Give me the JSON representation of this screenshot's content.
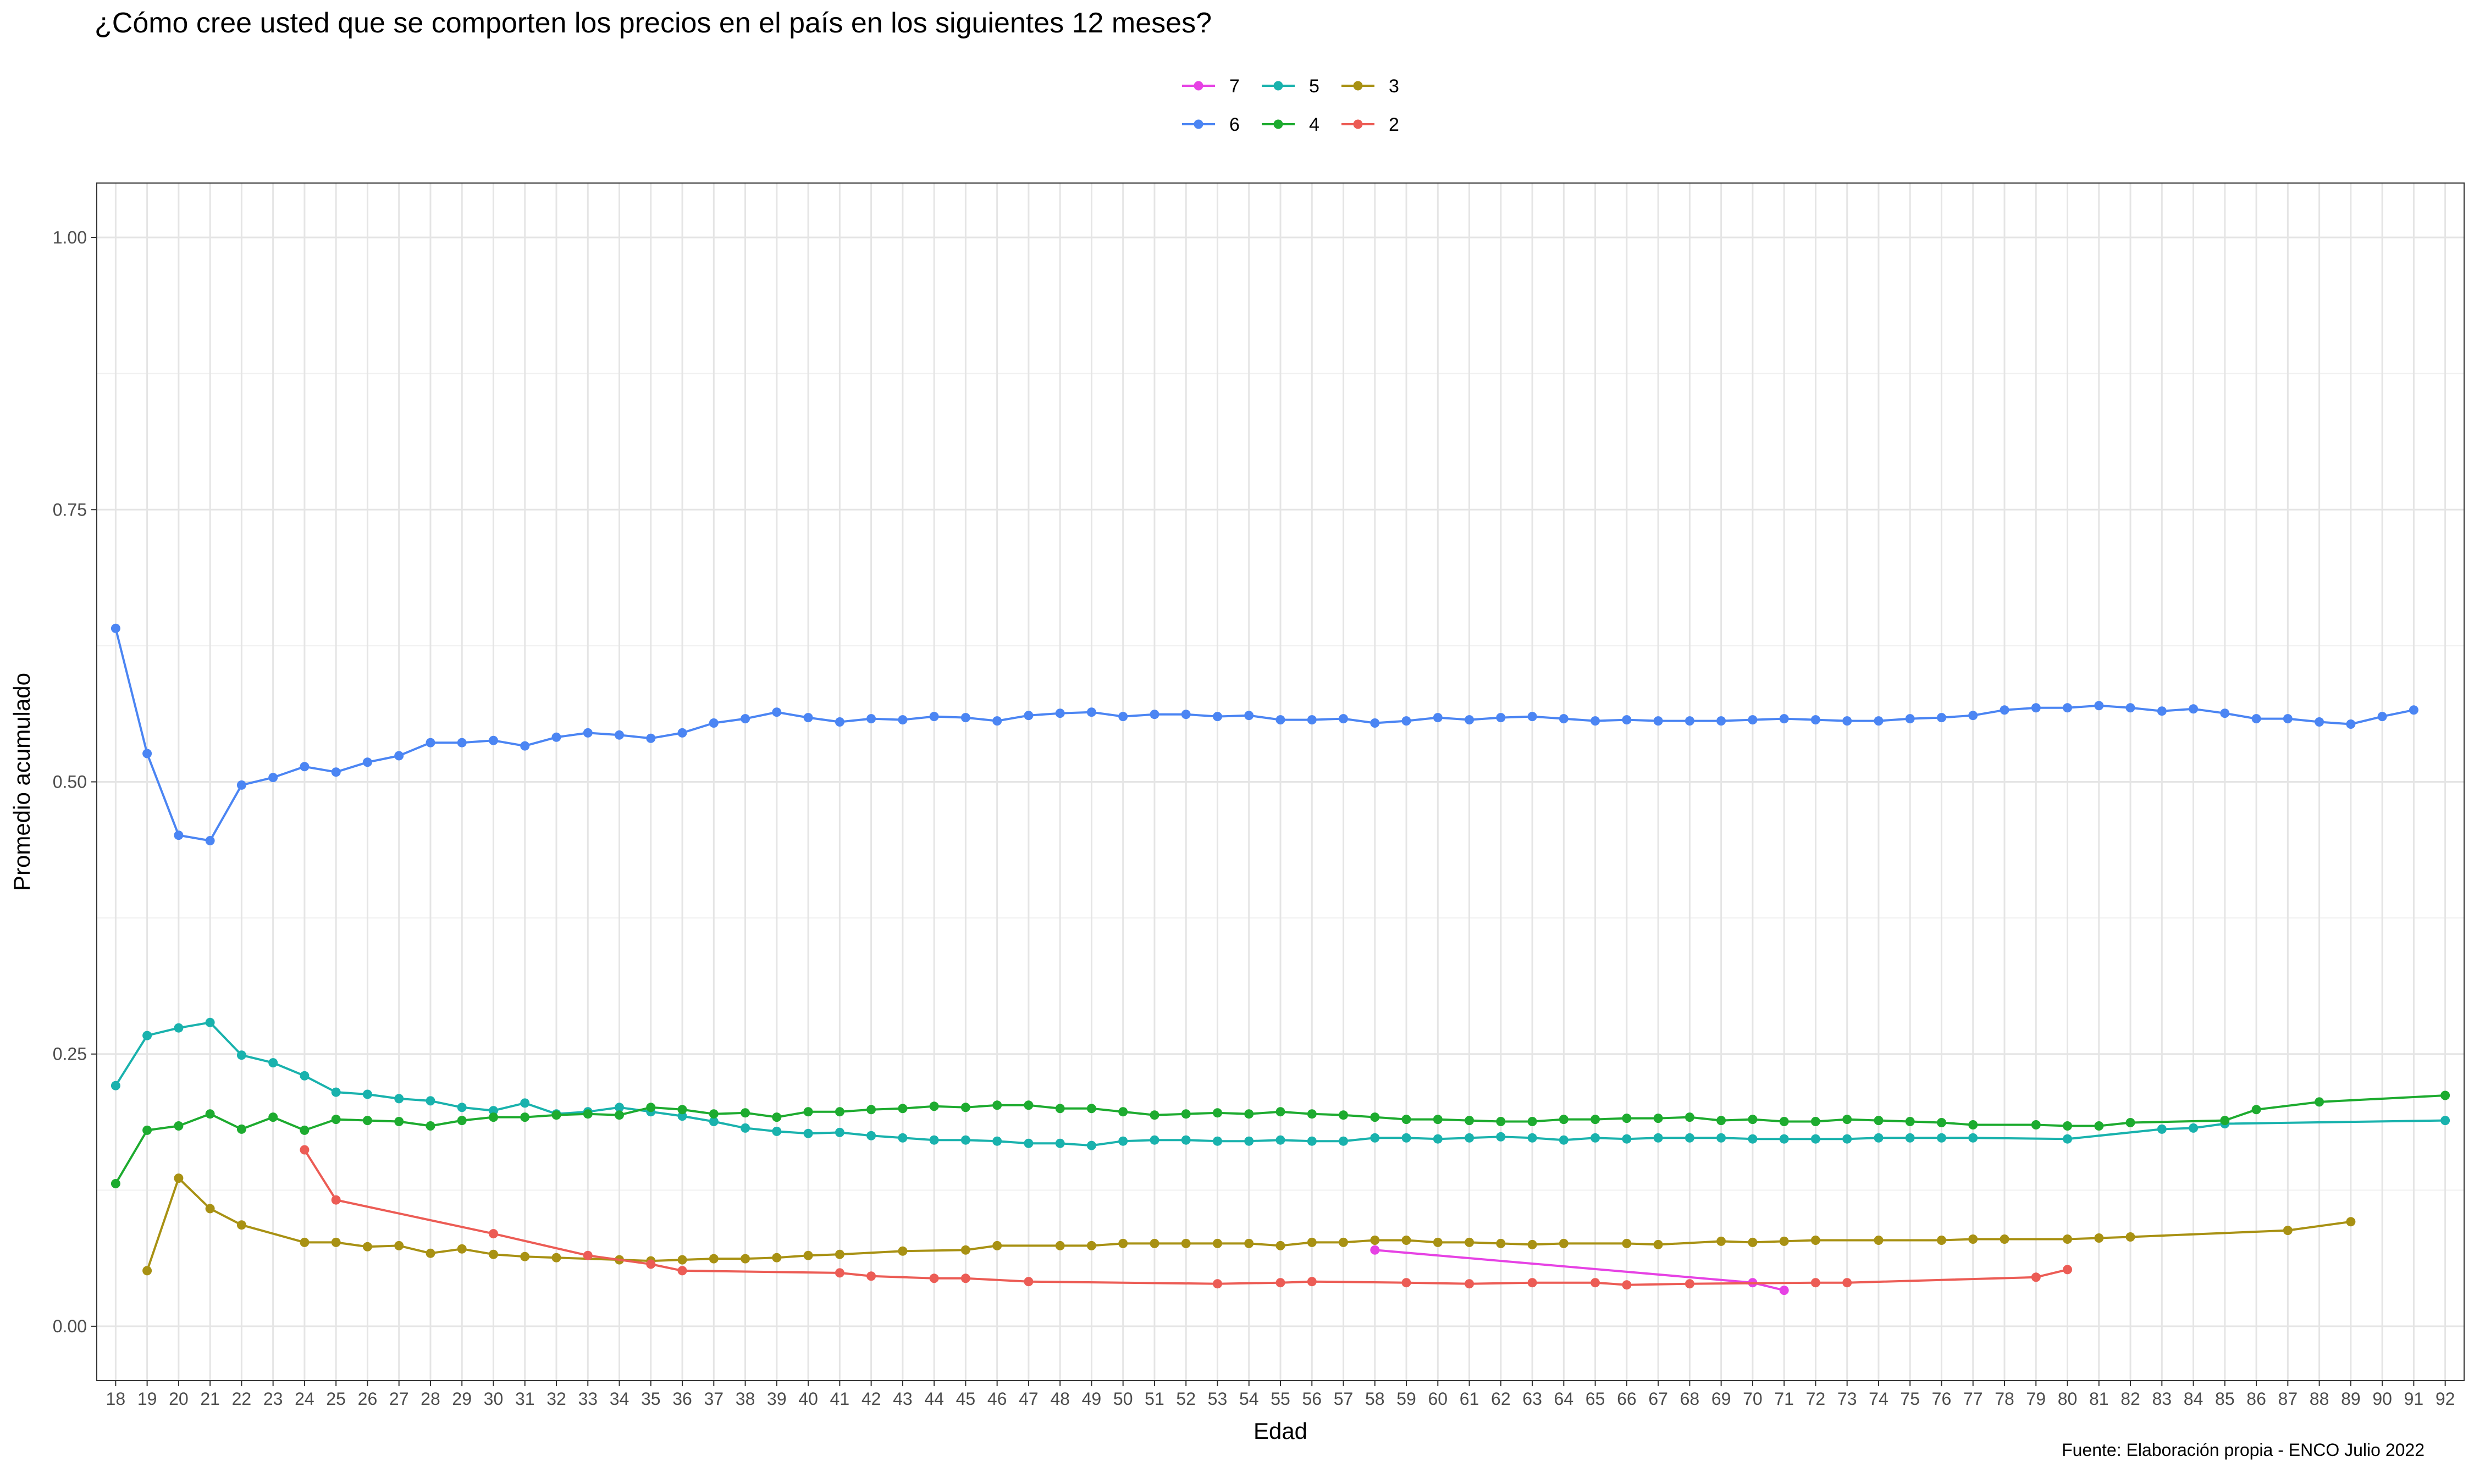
{
  "chart_data": {
    "type": "line",
    "title": "¿Cómo cree usted que se comporten los precios en el país en los siguientes 12 meses?",
    "xlabel": "Edad",
    "ylabel": "Promedio acumulado",
    "caption": "Fuente: Elaboración propia - ENCO Julio 2022",
    "xlim": [
      18,
      92
    ],
    "ylim": [
      0,
      1
    ],
    "y_ticks": [
      "0.00",
      "0.25",
      "0.50",
      "0.75",
      "1.00"
    ],
    "x_ticks": [
      "18",
      "19",
      "20",
      "21",
      "22",
      "23",
      "24",
      "25",
      "26",
      "27",
      "28",
      "29",
      "30",
      "31",
      "32",
      "33",
      "34",
      "35",
      "36",
      "37",
      "38",
      "39",
      "40",
      "41",
      "42",
      "43",
      "44",
      "45",
      "46",
      "47",
      "48",
      "49",
      "50",
      "51",
      "52",
      "53",
      "54",
      "55",
      "56",
      "57",
      "58",
      "59",
      "60",
      "61",
      "62",
      "63",
      "64",
      "65",
      "66",
      "67",
      "68",
      "69",
      "70",
      "71",
      "72",
      "73",
      "74",
      "75",
      "76",
      "77",
      "78",
      "79",
      "80",
      "81",
      "82",
      "83",
      "84",
      "85",
      "86",
      "87",
      "88",
      "89",
      "90",
      "91",
      "92"
    ],
    "grid": true,
    "legend_position": "top",
    "series": [
      {
        "name": "7",
        "color": "#e642e4",
        "x": [
          58,
          70,
          71
        ],
        "y": [
          0.07,
          0.04,
          0.033
        ]
      },
      {
        "name": "6",
        "color": "#4b85f3",
        "x": [
          18,
          19,
          20,
          21,
          22,
          23,
          24,
          25,
          26,
          27,
          28,
          29,
          30,
          31,
          32,
          33,
          34,
          35,
          36,
          37,
          38,
          39,
          40,
          41,
          42,
          43,
          44,
          45,
          46,
          47,
          48,
          49,
          50,
          51,
          52,
          53,
          54,
          55,
          56,
          57,
          58,
          59,
          60,
          61,
          62,
          63,
          64,
          65,
          66,
          67,
          68,
          69,
          70,
          71,
          72,
          73,
          74,
          75,
          76,
          77,
          78,
          79,
          80,
          81,
          82,
          83,
          84,
          85,
          86,
          87,
          88,
          89,
          90,
          91
        ],
        "y": [
          0.641,
          0.526,
          0.451,
          0.446,
          0.497,
          0.504,
          0.514,
          0.509,
          0.518,
          0.524,
          0.536,
          0.536,
          0.538,
          0.533,
          0.541,
          0.545,
          0.543,
          0.54,
          0.545,
          0.554,
          0.558,
          0.564,
          0.559,
          0.555,
          0.558,
          0.557,
          0.56,
          0.559,
          0.556,
          0.561,
          0.563,
          0.564,
          0.56,
          0.562,
          0.562,
          0.56,
          0.561,
          0.557,
          0.557,
          0.558,
          0.554,
          0.556,
          0.559,
          0.557,
          0.559,
          0.56,
          0.558,
          0.556,
          0.557,
          0.556,
          0.556,
          0.556,
          0.557,
          0.558,
          0.557,
          0.556,
          0.556,
          0.558,
          0.559,
          0.561,
          0.566,
          0.568,
          0.568,
          0.57,
          0.568,
          0.565,
          0.567,
          0.563,
          0.558,
          0.558,
          0.555,
          0.553,
          0.56,
          0.566
        ]
      },
      {
        "name": "5",
        "color": "#19b2ad",
        "x": [
          18,
          19,
          20,
          21,
          22,
          23,
          24,
          25,
          26,
          27,
          28,
          29,
          30,
          31,
          32,
          33,
          34,
          35,
          36,
          37,
          38,
          39,
          40,
          41,
          42,
          43,
          44,
          45,
          46,
          47,
          48,
          49,
          50,
          51,
          52,
          53,
          54,
          55,
          56,
          57,
          58,
          59,
          60,
          61,
          62,
          63,
          64,
          65,
          66,
          67,
          68,
          69,
          70,
          71,
          72,
          73,
          74,
          75,
          76,
          77,
          80,
          83,
          84,
          85,
          92
        ],
        "y": [
          0.221,
          0.267,
          0.274,
          0.279,
          0.249,
          0.242,
          0.23,
          0.215,
          0.213,
          0.209,
          0.207,
          0.201,
          0.198,
          0.205,
          0.195,
          0.197,
          0.201,
          0.197,
          0.193,
          0.188,
          0.182,
          0.179,
          0.177,
          0.178,
          0.175,
          0.173,
          0.171,
          0.171,
          0.17,
          0.168,
          0.168,
          0.166,
          0.17,
          0.171,
          0.171,
          0.17,
          0.17,
          0.171,
          0.17,
          0.17,
          0.173,
          0.173,
          0.172,
          0.173,
          0.174,
          0.173,
          0.171,
          0.173,
          0.172,
          0.173,
          0.173,
          0.173,
          0.172,
          0.172,
          0.172,
          0.172,
          0.173,
          0.173,
          0.173,
          0.173,
          0.172,
          0.181,
          0.182,
          0.186,
          0.189
        ]
      },
      {
        "name": "4",
        "color": "#1dab2f",
        "x": [
          18,
          19,
          20,
          21,
          22,
          23,
          24,
          25,
          26,
          27,
          28,
          29,
          30,
          31,
          32,
          33,
          34,
          35,
          36,
          37,
          38,
          39,
          40,
          41,
          42,
          43,
          44,
          45,
          46,
          47,
          48,
          49,
          50,
          51,
          52,
          53,
          54,
          55,
          56,
          57,
          58,
          59,
          60,
          61,
          62,
          63,
          64,
          65,
          66,
          67,
          68,
          69,
          70,
          71,
          72,
          73,
          74,
          75,
          76,
          77,
          79,
          80,
          81,
          82,
          85,
          86,
          88,
          92
        ],
        "y": [
          0.131,
          0.18,
          0.184,
          0.195,
          0.181,
          0.192,
          0.18,
          0.19,
          0.189,
          0.188,
          0.184,
          0.189,
          0.192,
          0.192,
          0.194,
          0.195,
          0.194,
          0.201,
          0.199,
          0.195,
          0.196,
          0.192,
          0.197,
          0.197,
          0.199,
          0.2,
          0.202,
          0.201,
          0.203,
          0.203,
          0.2,
          0.2,
          0.197,
          0.194,
          0.195,
          0.196,
          0.195,
          0.197,
          0.195,
          0.194,
          0.192,
          0.19,
          0.19,
          0.189,
          0.188,
          0.188,
          0.19,
          0.19,
          0.191,
          0.191,
          0.192,
          0.189,
          0.19,
          0.188,
          0.188,
          0.19,
          0.189,
          0.188,
          0.187,
          0.185,
          0.185,
          0.184,
          0.184,
          0.187,
          0.189,
          0.199,
          0.206,
          0.212
        ]
      },
      {
        "name": "3",
        "color": "#a89113",
        "x": [
          19,
          20,
          21,
          22,
          24,
          25,
          26,
          27,
          28,
          29,
          30,
          31,
          32,
          34,
          35,
          36,
          37,
          38,
          39,
          40,
          41,
          43,
          45,
          46,
          48,
          49,
          50,
          51,
          52,
          53,
          54,
          55,
          56,
          57,
          58,
          59,
          60,
          61,
          62,
          63,
          64,
          66,
          67,
          69,
          70,
          71,
          72,
          74,
          76,
          77,
          78,
          80,
          81,
          82,
          87,
          89
        ],
        "y": [
          0.051,
          0.136,
          0.108,
          0.093,
          0.077,
          0.077,
          0.073,
          0.074,
          0.067,
          0.071,
          0.066,
          0.064,
          0.063,
          0.061,
          0.06,
          0.061,
          0.062,
          0.062,
          0.063,
          0.065,
          0.066,
          0.069,
          0.07,
          0.074,
          0.074,
          0.074,
          0.076,
          0.076,
          0.076,
          0.076,
          0.076,
          0.074,
          0.077,
          0.077,
          0.079,
          0.079,
          0.077,
          0.077,
          0.076,
          0.075,
          0.076,
          0.076,
          0.075,
          0.078,
          0.077,
          0.078,
          0.079,
          0.079,
          0.079,
          0.08,
          0.08,
          0.08,
          0.081,
          0.082,
          0.088,
          0.096
        ]
      },
      {
        "name": "2",
        "color": "#ec5c55",
        "x": [
          24,
          25,
          30,
          33,
          35,
          36,
          41,
          42,
          44,
          45,
          47,
          53,
          55,
          56,
          59,
          61,
          63,
          65,
          66,
          68,
          72,
          73,
          79,
          80
        ],
        "y": [
          0.162,
          0.116,
          0.085,
          0.065,
          0.057,
          0.051,
          0.049,
          0.046,
          0.044,
          0.044,
          0.041,
          0.039,
          0.04,
          0.041,
          0.04,
          0.039,
          0.04,
          0.04,
          0.038,
          0.039,
          0.04,
          0.04,
          0.045,
          0.052
        ]
      }
    ]
  }
}
